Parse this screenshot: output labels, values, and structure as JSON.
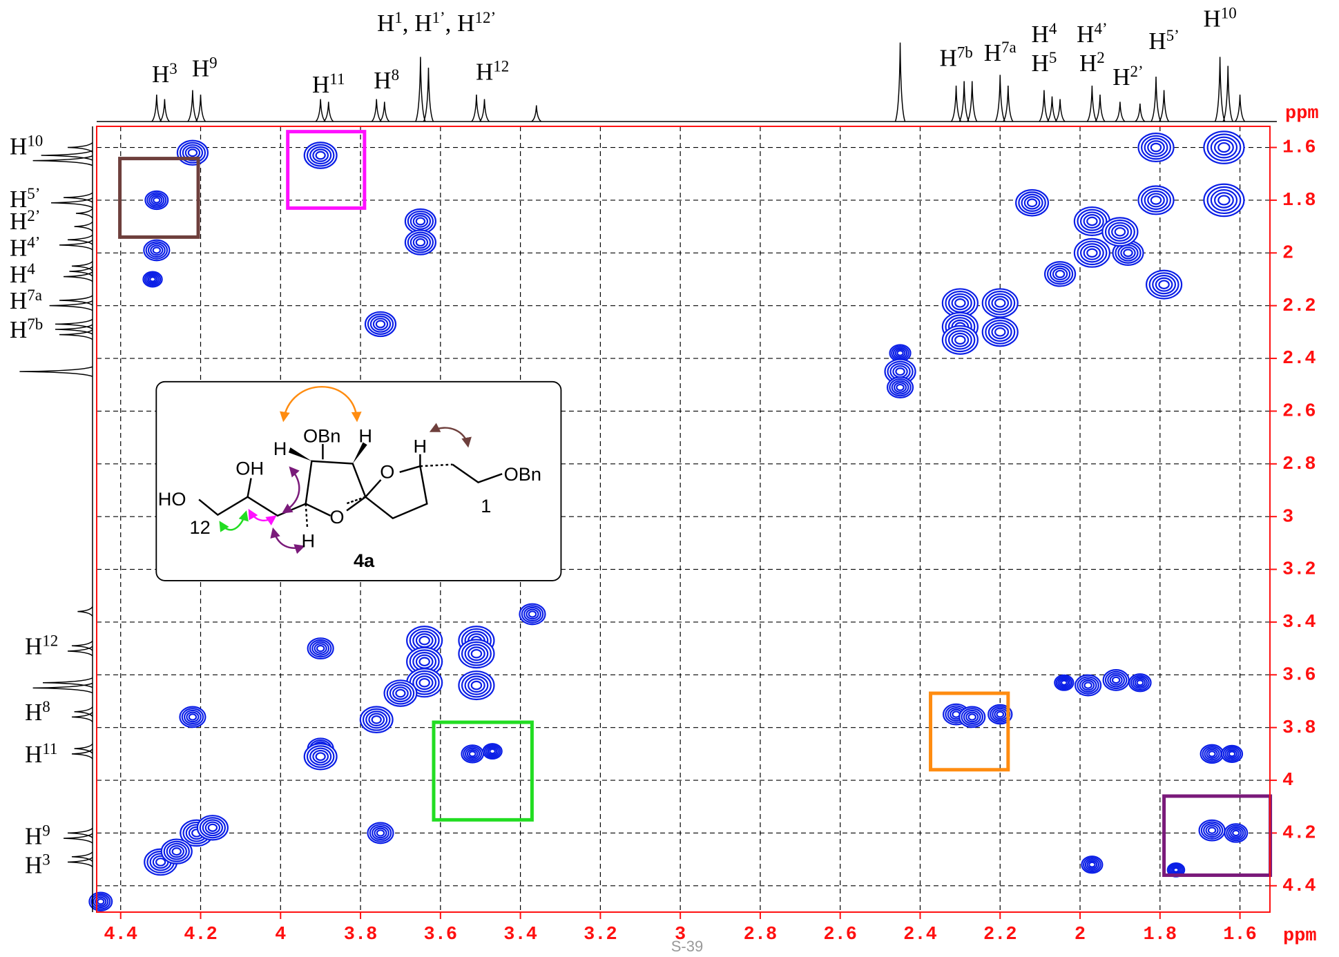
{
  "chart_data": {
    "type": "contour2d",
    "x_label": "ppm",
    "y_label": "ppm",
    "xlim": [
      4.46,
      1.525
    ],
    "ylim": [
      1.52,
      4.5
    ],
    "xticks": [
      4.4,
      4.2,
      4.0,
      3.8,
      3.6,
      3.4,
      3.2,
      3.0,
      2.8,
      2.6,
      2.4,
      2.2,
      2.0,
      1.8,
      1.6
    ],
    "yticks": [
      1.6,
      1.8,
      2.0,
      2.2,
      2.4,
      2.6,
      2.8,
      3.0,
      3.2,
      3.4,
      3.6,
      3.8,
      4.0,
      4.2,
      4.4
    ],
    "grid": true,
    "color": "#0a1ee6",
    "x": [
      4.22,
      3.9,
      4.31,
      4.31,
      4.32,
      3.65,
      3.65,
      3.75,
      2.45,
      2.45,
      2.45,
      2.3,
      2.3,
      2.2,
      2.2,
      2.12,
      1.97,
      1.97,
      1.88,
      1.81,
      1.81,
      1.64,
      1.64,
      1.79,
      2.05,
      1.9,
      2.3,
      3.37,
      3.9,
      3.64,
      3.64,
      3.64,
      3.51,
      3.51,
      3.51,
      3.7,
      3.76,
      4.22,
      3.9,
      3.9,
      3.52,
      3.47,
      2.31,
      2.27,
      2.2,
      2.04,
      1.98,
      1.91,
      1.85,
      1.67,
      1.62,
      1.67,
      1.61,
      4.21,
      4.17,
      4.3,
      4.26,
      3.75,
      1.97,
      4.45,
      1.76
    ],
    "y": [
      1.62,
      1.63,
      1.8,
      1.99,
      2.1,
      1.88,
      1.96,
      2.27,
      2.38,
      2.45,
      2.51,
      2.19,
      2.28,
      2.19,
      2.3,
      1.81,
      1.88,
      2.0,
      2.0,
      1.6,
      1.8,
      1.6,
      1.8,
      2.12,
      2.08,
      1.92,
      2.33,
      3.37,
      3.5,
      3.47,
      3.55,
      3.63,
      3.47,
      3.52,
      3.64,
      3.67,
      3.77,
      3.76,
      3.88,
      3.91,
      3.9,
      3.89,
      3.75,
      3.76,
      3.75,
      3.63,
      3.64,
      3.62,
      3.63,
      3.9,
      3.9,
      4.19,
      4.2,
      4.2,
      4.18,
      4.31,
      4.27,
      4.2,
      4.32,
      4.46,
      4.34
    ],
    "sizes": [
      2,
      2.2,
      1.2,
      1.5,
      0.8,
      2,
      2,
      2,
      1,
      2,
      1.5,
      2.5,
      2.5,
      2.5,
      2.5,
      2.2,
      2.5,
      2.5,
      2,
      2.5,
      2.5,
      3,
      3,
      2.5,
      2,
      2.5,
      2.5,
      1.5,
      1.5,
      2.5,
      2.5,
      2.5,
      2.5,
      2.5,
      2.5,
      2.2,
      2.2,
      1.5,
      1.5,
      2.2,
      1.1,
      0.8,
      1.5,
      1.5,
      1.3,
      0.8,
      1.5,
      1.5,
      1.1,
      1.2,
      1,
      1.5,
      1.2,
      2.2,
      2,
      2.2,
      2,
      1.5,
      1,
      1.2,
      0.6
    ],
    "projection": {
      "ppm": [
        4.31,
        4.29,
        4.22,
        4.2,
        3.9,
        3.88,
        3.76,
        3.74,
        3.65,
        3.63,
        3.51,
        3.49,
        3.36,
        2.45,
        2.31,
        2.29,
        2.27,
        2.2,
        2.18,
        2.09,
        2.07,
        2.05,
        1.97,
        1.95,
        1.9,
        1.85,
        1.81,
        1.79,
        1.65,
        1.63,
        1.6
      ],
      "heights": [
        30,
        25,
        35,
        30,
        25,
        22,
        25,
        22,
        72,
        60,
        30,
        25,
        18,
        88,
        40,
        45,
        45,
        52,
        40,
        35,
        28,
        25,
        40,
        30,
        22,
        20,
        50,
        35,
        72,
        62,
        30
      ]
    },
    "top_labels": [
      {
        "x": 4.29,
        "parts": [
          {
            "t": "H"
          },
          {
            "sup": "3"
          }
        ]
      },
      {
        "x": 4.19,
        "parts": [
          {
            "t": "H"
          },
          {
            "sup": "9"
          }
        ]
      },
      {
        "x": 3.61,
        "parts": [
          {
            "t": "H"
          },
          {
            "sup": "1"
          },
          {
            "t": ", H"
          },
          {
            "sup": "1’"
          },
          {
            "t": ", H"
          },
          {
            "sup": "12’"
          }
        ]
      },
      {
        "x": 3.88,
        "parts": [
          {
            "t": "H"
          },
          {
            "sup": "11"
          }
        ]
      },
      {
        "x": 3.735,
        "parts": [
          {
            "t": "H"
          },
          {
            "sup": "8"
          }
        ]
      },
      {
        "x": 3.47,
        "parts": [
          {
            "t": "H"
          },
          {
            "sup": "12"
          }
        ]
      },
      {
        "x": 2.31,
        "parts": [
          {
            "t": "H"
          },
          {
            "sup": "7b"
          }
        ]
      },
      {
        "x": 2.2,
        "parts": [
          {
            "t": "H"
          },
          {
            "sup": "7a"
          }
        ]
      },
      {
        "x": 2.09,
        "parts": [
          {
            "t": "H"
          },
          {
            "sup": "4"
          }
        ]
      },
      {
        "x": 2.09,
        "parts": [
          {
            "t": "H"
          },
          {
            "sup": "5"
          }
        ]
      },
      {
        "x": 1.97,
        "parts": [
          {
            "t": "H"
          },
          {
            "sup": "4’"
          }
        ]
      },
      {
        "x": 1.97,
        "parts": [
          {
            "t": "H"
          },
          {
            "sup": "2"
          }
        ]
      },
      {
        "x": 1.88,
        "parts": [
          {
            "t": "H"
          },
          {
            "sup": "2’"
          }
        ]
      },
      {
        "x": 1.79,
        "parts": [
          {
            "t": "H"
          },
          {
            "sup": "5’"
          }
        ]
      },
      {
        "x": 1.65,
        "parts": [
          {
            "t": "H"
          },
          {
            "sup": "10"
          }
        ]
      }
    ],
    "left_labels": [
      {
        "y": 1.594,
        "parts": [
          {
            "t": "H"
          },
          {
            "sup": "10"
          }
        ]
      },
      {
        "y": 1.795,
        "parts": [
          {
            "t": "H"
          },
          {
            "sup": "5’"
          }
        ]
      },
      {
        "y": 1.879,
        "parts": [
          {
            "t": "H"
          },
          {
            "sup": "2’"
          }
        ]
      },
      {
        "y": 1.98,
        "parts": [
          {
            "t": "H"
          },
          {
            "sup": "4’"
          }
        ]
      },
      {
        "y": 2.08,
        "parts": [
          {
            "t": "H"
          },
          {
            "sup": "4"
          }
        ]
      },
      {
        "y": 2.18,
        "parts": [
          {
            "t": "H"
          },
          {
            "sup": "7a"
          }
        ]
      },
      {
        "y": 2.29,
        "parts": [
          {
            "t": "H"
          },
          {
            "sup": "7b"
          }
        ]
      },
      {
        "y": 3.49,
        "parts": [
          {
            "t": "H"
          },
          {
            "sup": "12"
          }
        ]
      },
      {
        "y": 3.74,
        "parts": [
          {
            "t": "H"
          },
          {
            "sup": "8"
          }
        ]
      },
      {
        "y": 3.9,
        "parts": [
          {
            "t": "H"
          },
          {
            "sup": "11"
          }
        ]
      },
      {
        "y": 4.21,
        "parts": [
          {
            "t": "H"
          },
          {
            "sup": "9"
          }
        ]
      },
      {
        "y": 4.32,
        "parts": [
          {
            "t": "H"
          },
          {
            "sup": "3"
          }
        ]
      }
    ],
    "boxes": [
      {
        "x": [
          4.402,
          4.206
        ],
        "y": [
          1.642,
          1.94
        ],
        "color": "#6e3f3c"
      },
      {
        "x": [
          3.982,
          3.79
        ],
        "y": [
          1.54,
          1.83
        ],
        "color": "#ff10ff"
      },
      {
        "x": [
          3.617,
          3.371
        ],
        "y": [
          3.78,
          4.15
        ],
        "color": "#22dd22"
      },
      {
        "x": [
          2.374,
          2.18
        ],
        "y": [
          3.67,
          3.96
        ],
        "color": "#ff8c10"
      },
      {
        "x": [
          1.79,
          1.524
        ],
        "y": [
          4.06,
          4.36
        ],
        "color": "#7a1a7a"
      }
    ],
    "inset": {
      "title": "4a",
      "labels": [
        "HO",
        "12",
        "OH",
        "H",
        "OBn",
        "H",
        "O",
        "H",
        "O",
        "H",
        "OBn",
        "1"
      ]
    },
    "page_number": "S-39"
  }
}
